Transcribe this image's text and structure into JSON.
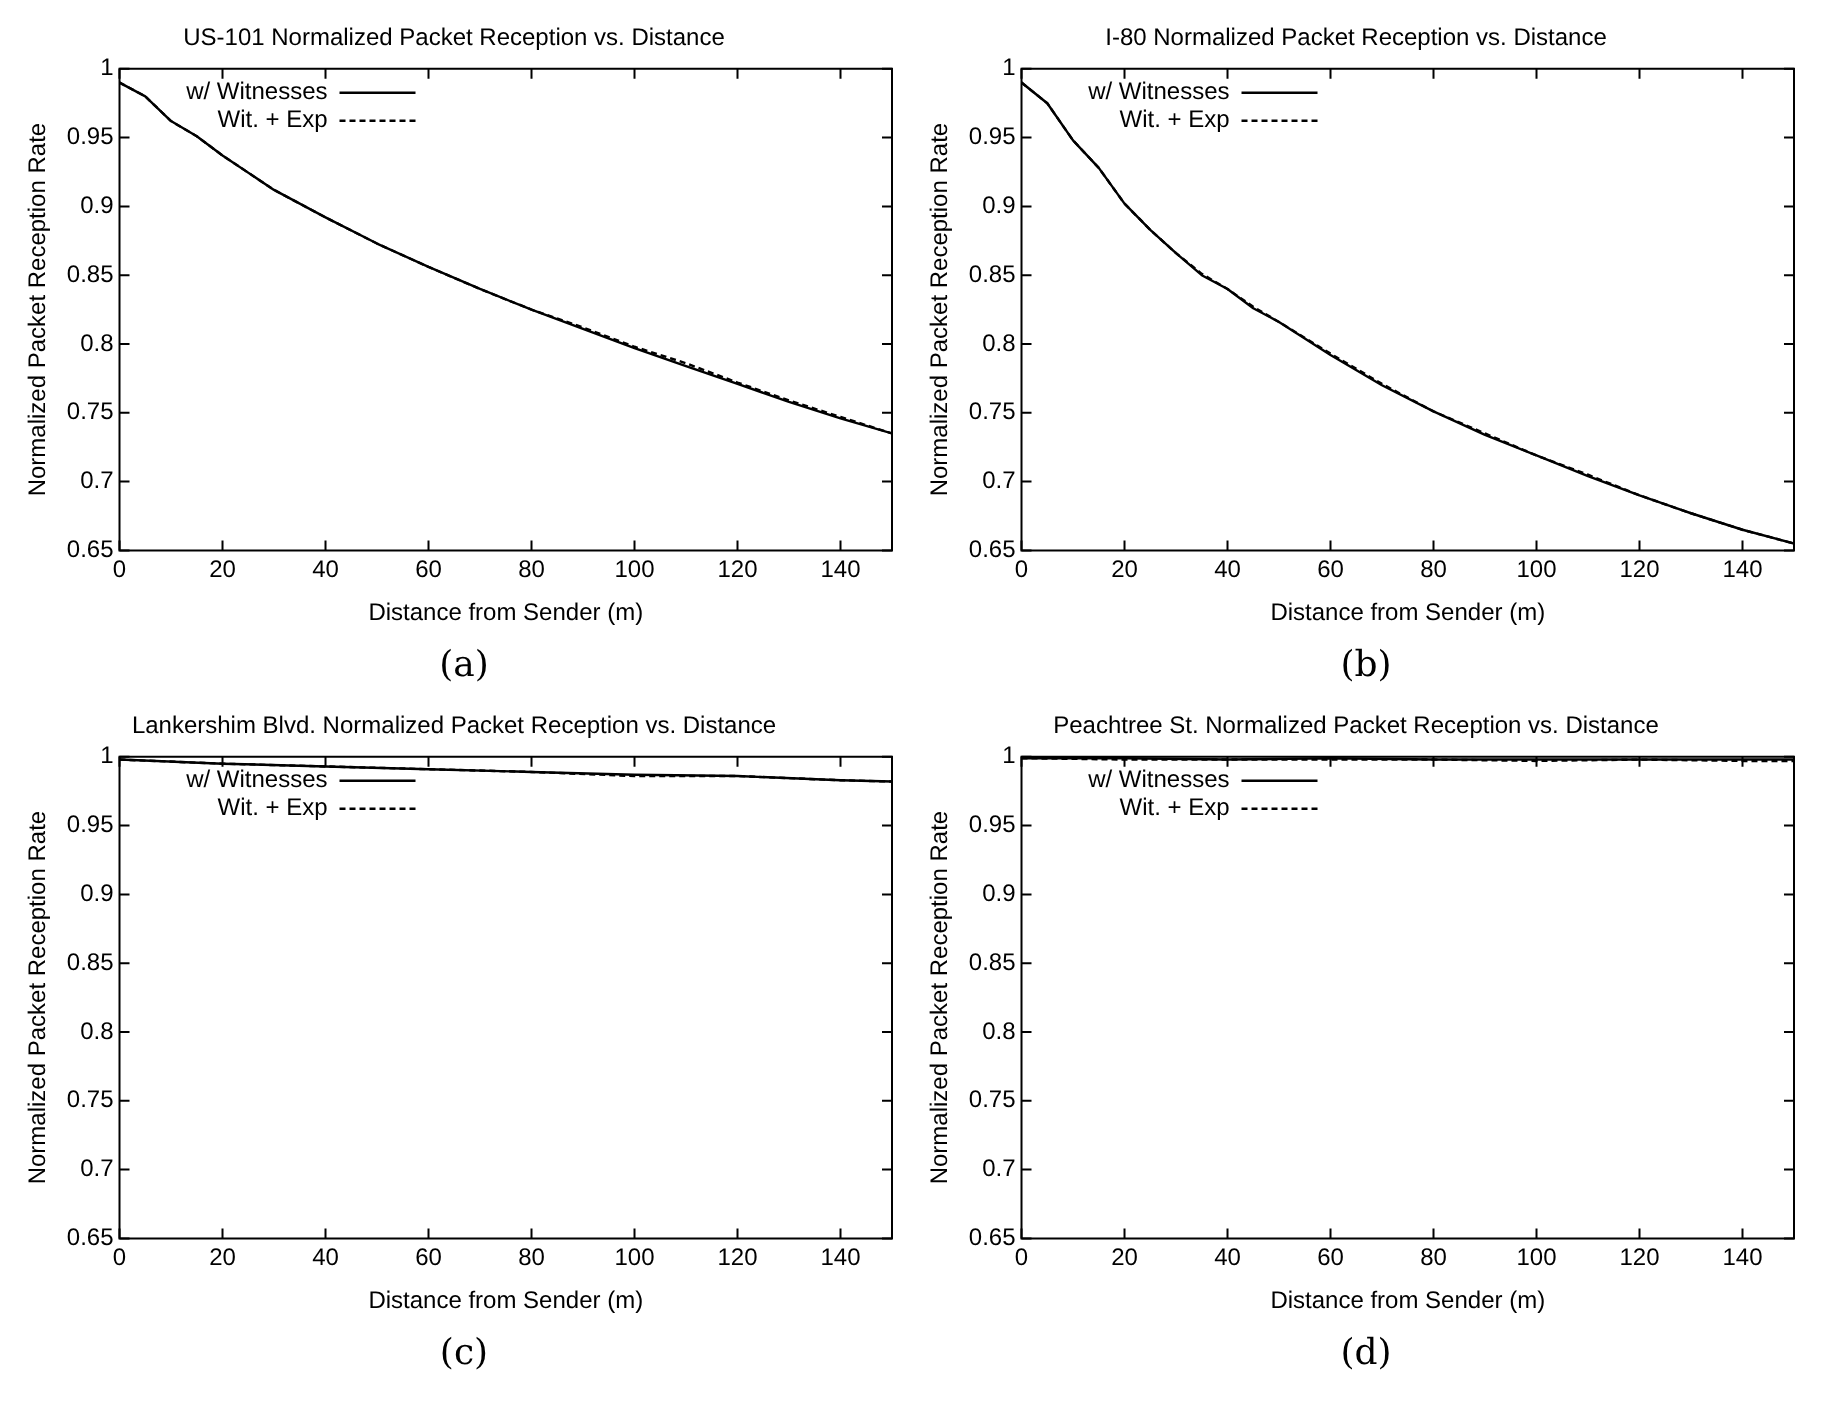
{
  "chart_data": [
    {
      "type": "line",
      "title": "US-101 Normalized Packet Reception vs. Distance",
      "xlabel": "Distance from Sender (m)",
      "ylabel": "Normalized Packet Reception Rate",
      "annotations": [
        "(a)"
      ],
      "xlim": [
        0,
        150
      ],
      "xticks": [
        0,
        20,
        40,
        60,
        80,
        100,
        120,
        140
      ],
      "ylim": [
        0.65,
        1
      ],
      "yticks": [
        0.65,
        0.7,
        0.75,
        0.8,
        0.85,
        0.9,
        0.95,
        1
      ],
      "grid": false,
      "legend": "top left",
      "marker": "none",
      "x": [
        0,
        5,
        10,
        15,
        20,
        30,
        40,
        50,
        60,
        70,
        80,
        90,
        100,
        110,
        120,
        130,
        140,
        150
      ],
      "series": [
        {
          "name": "w/ Witnesses",
          "color": "#000000",
          "line_style": "solid",
          "values": [
            0.99,
            0.98,
            0.962,
            0.951,
            0.937,
            0.912,
            0.892,
            0.873,
            0.856,
            0.84,
            0.825,
            0.811,
            0.797,
            0.784,
            0.771,
            0.758,
            0.746,
            0.735
          ]
        },
        {
          "name": "Wit. + Exp",
          "color": "#000000",
          "line_style": "dashed",
          "values": [
            0.99,
            0.98,
            0.962,
            0.951,
            0.937,
            0.912,
            0.892,
            0.873,
            0.856,
            0.84,
            0.825,
            0.812,
            0.798,
            0.786,
            0.772,
            0.759,
            0.747,
            0.735
          ]
        }
      ]
    },
    {
      "type": "line",
      "title": "I-80 Normalized Packet Reception vs. Distance",
      "xlabel": "Distance from Sender (m)",
      "ylabel": "Normalized Packet Reception Rate",
      "annotations": [
        "(b)"
      ],
      "xlim": [
        0,
        150
      ],
      "xticks": [
        0,
        20,
        40,
        60,
        80,
        100,
        120,
        140
      ],
      "ylim": [
        0.65,
        1
      ],
      "yticks": [
        0.65,
        0.7,
        0.75,
        0.8,
        0.85,
        0.9,
        0.95,
        1
      ],
      "grid": false,
      "legend": "top left",
      "marker": "none",
      "x": [
        0,
        5,
        10,
        15,
        20,
        25,
        30,
        35,
        40,
        45,
        50,
        60,
        70,
        80,
        90,
        100,
        110,
        120,
        130,
        140,
        150
      ],
      "series": [
        {
          "name": "w/ Witnesses",
          "color": "#000000",
          "line_style": "solid",
          "values": [
            0.99,
            0.975,
            0.948,
            0.928,
            0.902,
            0.883,
            0.866,
            0.85,
            0.84,
            0.826,
            0.816,
            0.792,
            0.77,
            0.751,
            0.734,
            0.719,
            0.704,
            0.69,
            0.677,
            0.665,
            0.655
          ]
        },
        {
          "name": "Wit. + Exp",
          "color": "#000000",
          "line_style": "dashed",
          "values": [
            0.99,
            0.975,
            0.948,
            0.928,
            0.902,
            0.883,
            0.866,
            0.851,
            0.84,
            0.827,
            0.816,
            0.793,
            0.771,
            0.751,
            0.735,
            0.719,
            0.705,
            0.69,
            0.677,
            0.665,
            0.655
          ]
        }
      ]
    },
    {
      "type": "line",
      "title": "Lankershim Blvd. Normalized Packet Reception vs. Distance",
      "xlabel": "Distance from Sender (m)",
      "ylabel": "Normalized Packet Reception Rate",
      "annotations": [
        "(c)"
      ],
      "xlim": [
        0,
        150
      ],
      "xticks": [
        0,
        20,
        40,
        60,
        80,
        100,
        120,
        140
      ],
      "ylim": [
        0.65,
        1
      ],
      "yticks": [
        0.65,
        0.7,
        0.75,
        0.8,
        0.85,
        0.9,
        0.95,
        1
      ],
      "grid": false,
      "legend": "top left",
      "marker": "none",
      "x": [
        0,
        20,
        40,
        60,
        80,
        100,
        120,
        140,
        150
      ],
      "series": [
        {
          "name": "w/ Witnesses",
          "color": "#000000",
          "line_style": "solid",
          "values": [
            0.998,
            0.995,
            0.993,
            0.991,
            0.989,
            0.987,
            0.986,
            0.983,
            0.982
          ]
        },
        {
          "name": "Wit. + Exp",
          "color": "#000000",
          "line_style": "dashed",
          "values": [
            0.998,
            0.995,
            0.993,
            0.991,
            0.989,
            0.986,
            0.986,
            0.983,
            0.982
          ]
        }
      ]
    },
    {
      "type": "line",
      "title": "Peachtree St. Normalized Packet Reception vs. Distance",
      "xlabel": "Distance from Sender (m)",
      "ylabel": "Normalized Packet Reception Rate",
      "annotations": [
        "(d)"
      ],
      "xlim": [
        0,
        150
      ],
      "xticks": [
        0,
        20,
        40,
        60,
        80,
        100,
        120,
        140
      ],
      "ylim": [
        0.65,
        1
      ],
      "yticks": [
        0.65,
        0.7,
        0.75,
        0.8,
        0.85,
        0.9,
        0.95,
        1
      ],
      "grid": false,
      "legend": "top left",
      "marker": "none",
      "x": [
        0,
        20,
        40,
        60,
        80,
        100,
        120,
        140,
        150
      ],
      "series": [
        {
          "name": "w/ Witnesses",
          "color": "#000000",
          "line_style": "solid",
          "values": [
            0.999,
            0.999,
            0.998,
            0.999,
            0.998,
            0.998,
            0.998,
            0.998,
            0.998
          ]
        },
        {
          "name": "Wit. + Exp",
          "color": "#000000",
          "line_style": "dashed",
          "values": [
            0.999,
            0.998,
            0.998,
            0.998,
            0.998,
            0.997,
            0.998,
            0.997,
            0.997
          ]
        }
      ]
    }
  ]
}
